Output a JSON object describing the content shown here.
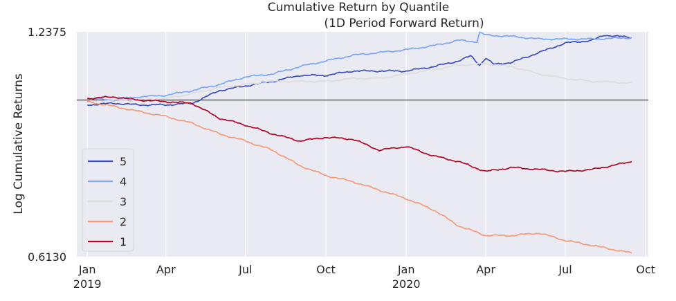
{
  "chart_data": {
    "type": "line",
    "title": "Cumulative Return by Quantile",
    "subtitle": "(1D Period Forward Return)",
    "ylabel": "Log Cumulative Returns",
    "xlabel": "",
    "yscale": "log",
    "ylim": [
      0.613,
      1.2375
    ],
    "y_tick_labels": [
      "1.2375",
      "0.6130"
    ],
    "xlim": [
      "2018-12-20",
      "2020-10-04"
    ],
    "x_ticks": [
      {
        "date": "2019-01-01",
        "label": "Jan",
        "sublabel": "2019"
      },
      {
        "date": "2019-04-01",
        "label": "Apr",
        "sublabel": ""
      },
      {
        "date": "2019-07-01",
        "label": "Jul",
        "sublabel": ""
      },
      {
        "date": "2019-10-01",
        "label": "Oct",
        "sublabel": ""
      },
      {
        "date": "2020-01-01",
        "label": "Jan",
        "sublabel": "2020"
      },
      {
        "date": "2020-04-01",
        "label": "Apr",
        "sublabel": ""
      },
      {
        "date": "2020-07-01",
        "label": "Jul",
        "sublabel": ""
      },
      {
        "date": "2020-10-01",
        "label": "Oct",
        "sublabel": ""
      }
    ],
    "reference_line": 1.0,
    "grid": true,
    "legend_position": "lower-left",
    "background": "#eaeaf2",
    "series": [
      {
        "name": "5",
        "color": "#3b4cc0",
        "points": [
          [
            "2019-01-01",
            0.985
          ],
          [
            "2019-02-01",
            0.99
          ],
          [
            "2019-03-01",
            0.985
          ],
          [
            "2019-04-01",
            0.985
          ],
          [
            "2019-05-01",
            0.99
          ],
          [
            "2019-06-01",
            1.03
          ],
          [
            "2019-07-01",
            1.045
          ],
          [
            "2019-08-01",
            1.06
          ],
          [
            "2019-09-01",
            1.08
          ],
          [
            "2019-10-01",
            1.08
          ],
          [
            "2019-11-01",
            1.095
          ],
          [
            "2019-12-01",
            1.095
          ],
          [
            "2020-01-01",
            1.095
          ],
          [
            "2020-02-01",
            1.11
          ],
          [
            "2020-03-01",
            1.13
          ],
          [
            "2020-03-15",
            1.148
          ],
          [
            "2020-03-25",
            1.115
          ],
          [
            "2020-04-01",
            1.14
          ],
          [
            "2020-04-10",
            1.118
          ],
          [
            "2020-05-01",
            1.125
          ],
          [
            "2020-06-01",
            1.16
          ],
          [
            "2020-07-01",
            1.195
          ],
          [
            "2020-08-01",
            1.205
          ],
          [
            "2020-08-15",
            1.225
          ],
          [
            "2020-09-01",
            1.22
          ],
          [
            "2020-09-15",
            1.215
          ]
        ]
      },
      {
        "name": "4",
        "color": "#7aa6f8",
        "points": [
          [
            "2019-01-01",
            1.005
          ],
          [
            "2019-02-01",
            1.0
          ],
          [
            "2019-03-01",
            1.01
          ],
          [
            "2019-04-01",
            1.015
          ],
          [
            "2019-05-01",
            1.03
          ],
          [
            "2019-06-01",
            1.05
          ],
          [
            "2019-07-01",
            1.075
          ],
          [
            "2019-08-01",
            1.085
          ],
          [
            "2019-09-01",
            1.11
          ],
          [
            "2019-10-01",
            1.13
          ],
          [
            "2019-11-01",
            1.15
          ],
          [
            "2019-12-01",
            1.16
          ],
          [
            "2020-01-01",
            1.17
          ],
          [
            "2020-02-01",
            1.185
          ],
          [
            "2020-03-01",
            1.205
          ],
          [
            "2020-03-22",
            1.2
          ],
          [
            "2020-03-25",
            1.235
          ],
          [
            "2020-04-01",
            1.225
          ],
          [
            "2020-05-01",
            1.22
          ],
          [
            "2020-06-01",
            1.21
          ],
          [
            "2020-07-01",
            1.21
          ],
          [
            "2020-08-01",
            1.21
          ],
          [
            "2020-09-15",
            1.215
          ]
        ]
      },
      {
        "name": "3",
        "color": "#dddcdc",
        "points": [
          [
            "2019-01-01",
            0.995
          ],
          [
            "2019-02-01",
            1.0
          ],
          [
            "2019-03-01",
            1.0
          ],
          [
            "2019-04-01",
            1.005
          ],
          [
            "2019-05-01",
            1.02
          ],
          [
            "2019-06-01",
            1.04
          ],
          [
            "2019-07-01",
            1.05
          ],
          [
            "2019-08-01",
            1.06
          ],
          [
            "2019-09-01",
            1.06
          ],
          [
            "2019-10-01",
            1.06
          ],
          [
            "2019-11-01",
            1.07
          ],
          [
            "2019-12-01",
            1.07
          ],
          [
            "2020-01-01",
            1.085
          ],
          [
            "2020-02-01",
            1.1
          ],
          [
            "2020-03-01",
            1.115
          ],
          [
            "2020-04-01",
            1.12
          ],
          [
            "2020-05-01",
            1.11
          ],
          [
            "2020-06-01",
            1.085
          ],
          [
            "2020-07-01",
            1.07
          ],
          [
            "2020-08-01",
            1.06
          ],
          [
            "2020-09-15",
            1.055
          ]
        ]
      },
      {
        "name": "2",
        "color": "#f49a7b",
        "points": [
          [
            "2019-01-01",
            0.995
          ],
          [
            "2019-02-01",
            0.98
          ],
          [
            "2019-03-01",
            0.965
          ],
          [
            "2019-04-01",
            0.95
          ],
          [
            "2019-05-01",
            0.93
          ],
          [
            "2019-06-01",
            0.9
          ],
          [
            "2019-07-01",
            0.88
          ],
          [
            "2019-08-01",
            0.855
          ],
          [
            "2019-09-01",
            0.815
          ],
          [
            "2019-10-01",
            0.79
          ],
          [
            "2019-11-01",
            0.775
          ],
          [
            "2019-12-01",
            0.755
          ],
          [
            "2020-01-01",
            0.735
          ],
          [
            "2020-02-01",
            0.71
          ],
          [
            "2020-03-01",
            0.675
          ],
          [
            "2020-04-01",
            0.655
          ],
          [
            "2020-05-01",
            0.655
          ],
          [
            "2020-06-01",
            0.66
          ],
          [
            "2020-07-01",
            0.645
          ],
          [
            "2020-08-01",
            0.635
          ],
          [
            "2020-09-15",
            0.62
          ]
        ]
      },
      {
        "name": "1",
        "color": "#b40426",
        "points": [
          [
            "2019-01-01",
            1.005
          ],
          [
            "2019-02-01",
            1.01
          ],
          [
            "2019-03-01",
            1.0
          ],
          [
            "2019-04-01",
            0.995
          ],
          [
            "2019-05-01",
            0.99
          ],
          [
            "2019-06-01",
            0.945
          ],
          [
            "2019-07-01",
            0.925
          ],
          [
            "2019-08-01",
            0.9
          ],
          [
            "2019-09-01",
            0.88
          ],
          [
            "2019-10-01",
            0.89
          ],
          [
            "2019-11-01",
            0.885
          ],
          [
            "2019-12-01",
            0.855
          ],
          [
            "2020-01-01",
            0.865
          ],
          [
            "2020-02-01",
            0.84
          ],
          [
            "2020-03-01",
            0.825
          ],
          [
            "2020-04-01",
            0.8
          ],
          [
            "2020-05-01",
            0.81
          ],
          [
            "2020-06-01",
            0.805
          ],
          [
            "2020-07-01",
            0.8
          ],
          [
            "2020-08-01",
            0.805
          ],
          [
            "2020-09-15",
            0.825
          ]
        ]
      }
    ]
  }
}
